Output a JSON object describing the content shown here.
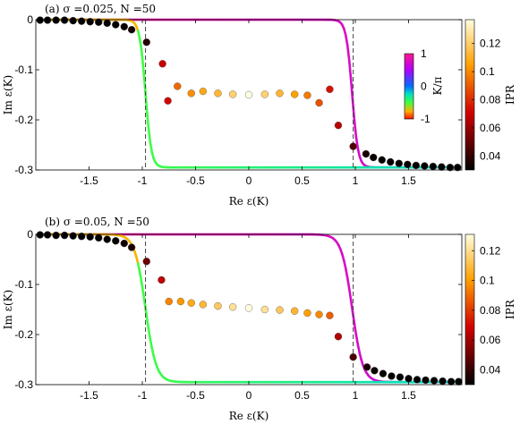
{
  "chart_data": [
    {
      "type": "scatter",
      "panel_label": "(a) σ =0.025, N =50",
      "xlabel": "Re ε(K)",
      "ylabel": "Im ε(K)",
      "xlim": [
        -2.0,
        2.0
      ],
      "ylim": [
        -0.3,
        0.0
      ],
      "xticks": [
        -1.5,
        -1,
        -0.5,
        0,
        0.5,
        1,
        1.5
      ],
      "xtick_labels": [
        "-1.5",
        "-1",
        "-0.5",
        "0",
        "0.5",
        "1",
        "1.5"
      ],
      "yticks": [
        0,
        -0.1,
        -0.2,
        -0.3
      ],
      "ytick_labels": [
        "0",
        "-0.1",
        "-0.2",
        "-0.3"
      ],
      "dashed_vlines": [
        -0.97,
        0.98
      ],
      "continuous_curve": {
        "colored_by": "K/π",
        "upper_branch": {
          "y": 0.0,
          "knee_x": 0.97,
          "width": 0.028
        },
        "lower_branch": {
          "y": -0.295,
          "knee_x": -0.97,
          "width": 0.028
        }
      },
      "points": [
        {
          "x": -0.96,
          "y": -0.045,
          "ipr": 0.037
        },
        {
          "x": -0.81,
          "y": -0.088,
          "ipr": 0.069
        },
        {
          "x": -0.76,
          "y": -0.162,
          "ipr": 0.072
        },
        {
          "x": -0.67,
          "y": -0.133,
          "ipr": 0.093
        },
        {
          "x": -0.54,
          "y": -0.147,
          "ipr": 0.101
        },
        {
          "x": -0.43,
          "y": -0.143,
          "ipr": 0.108
        },
        {
          "x": -0.29,
          "y": -0.147,
          "ipr": 0.112
        },
        {
          "x": -0.15,
          "y": -0.149,
          "ipr": 0.121
        },
        {
          "x": 0.0,
          "y": -0.15,
          "ipr": 0.137
        },
        {
          "x": 0.15,
          "y": -0.149,
          "ipr": 0.121
        },
        {
          "x": 0.29,
          "y": -0.147,
          "ipr": 0.112
        },
        {
          "x": 0.43,
          "y": -0.149,
          "ipr": 0.105
        },
        {
          "x": 0.55,
          "y": -0.151,
          "ipr": 0.097
        },
        {
          "x": 0.66,
          "y": -0.166,
          "ipr": 0.088
        },
        {
          "x": 0.76,
          "y": -0.139,
          "ipr": 0.074
        },
        {
          "x": 0.84,
          "y": -0.211,
          "ipr": 0.066
        },
        {
          "x": 0.98,
          "y": -0.253,
          "ipr": 0.046
        },
        {
          "x": 1.1,
          "y": -0.268,
          "ipr": 0.035
        },
        {
          "x": 1.17,
          "y": -0.275,
          "ipr": 0.032
        },
        {
          "x": 1.25,
          "y": -0.28,
          "ipr": 0.031
        },
        {
          "x": 1.33,
          "y": -0.284,
          "ipr": 0.03
        },
        {
          "x": 1.41,
          "y": -0.287,
          "ipr": 0.03
        },
        {
          "x": 1.49,
          "y": -0.289,
          "ipr": 0.03
        },
        {
          "x": 1.57,
          "y": -0.291,
          "ipr": 0.03
        },
        {
          "x": 1.65,
          "y": -0.292,
          "ipr": 0.03
        },
        {
          "x": 1.73,
          "y": -0.293,
          "ipr": 0.03
        },
        {
          "x": 1.81,
          "y": -0.294,
          "ipr": 0.03
        },
        {
          "x": 1.89,
          "y": -0.295,
          "ipr": 0.03
        },
        {
          "x": 1.96,
          "y": -0.295,
          "ipr": 0.03
        },
        {
          "x": -1.96,
          "y": -0.001,
          "ipr": 0.03
        },
        {
          "x": -1.89,
          "y": -0.001,
          "ipr": 0.03
        },
        {
          "x": -1.81,
          "y": -0.001,
          "ipr": 0.03
        },
        {
          "x": -1.73,
          "y": -0.001,
          "ipr": 0.03
        },
        {
          "x": -1.65,
          "y": -0.002,
          "ipr": 0.03
        },
        {
          "x": -1.57,
          "y": -0.003,
          "ipr": 0.03
        },
        {
          "x": -1.49,
          "y": -0.004,
          "ipr": 0.03
        },
        {
          "x": -1.41,
          "y": -0.005,
          "ipr": 0.03
        },
        {
          "x": -1.33,
          "y": -0.007,
          "ipr": 0.03
        },
        {
          "x": -1.25,
          "y": -0.01,
          "ipr": 0.031
        },
        {
          "x": -1.17,
          "y": -0.014,
          "ipr": 0.032
        },
        {
          "x": -1.1,
          "y": -0.02,
          "ipr": 0.034
        }
      ],
      "colorbar_k": {
        "label": "K/π",
        "ticks": [
          1,
          0,
          -1
        ],
        "tick_labels": [
          "1",
          "0",
          "-1"
        ]
      },
      "colorbar_ipr": {
        "label": "IPR",
        "range": [
          0.03,
          0.137
        ],
        "ticks": [
          0.04,
          0.06,
          0.08,
          0.1,
          0.12
        ],
        "tick_labels": [
          "0.04",
          "0.06",
          "0.08",
          "0.1",
          "0.12"
        ]
      }
    },
    {
      "type": "scatter",
      "panel_label": "(b) σ =0.05, N =50",
      "xlabel": "Re ε(K)",
      "ylabel": "Im ε(K)",
      "xlim": [
        -2.0,
        2.0
      ],
      "ylim": [
        -0.3,
        0.0
      ],
      "xticks": [
        -1.5,
        -1,
        -0.5,
        0,
        0.5,
        1,
        1.5
      ],
      "xtick_labels": [
        "-1.5",
        "-1",
        "-0.5",
        "0",
        "0.5",
        "1",
        "1.5"
      ],
      "yticks": [
        0,
        -0.1,
        -0.2,
        -0.3
      ],
      "ytick_labels": [
        "0",
        "-0.1",
        "-0.2",
        "-0.3"
      ],
      "dashed_vlines": [
        -0.97,
        0.98
      ],
      "continuous_curve": {
        "colored_by": "K/π",
        "upper_branch": {
          "y": 0.0,
          "knee_x": 0.97,
          "width": 0.05
        },
        "lower_branch": {
          "y": -0.295,
          "knee_x": -0.97,
          "width": 0.05
        }
      },
      "points": [
        {
          "x": -0.96,
          "y": -0.054,
          "ipr": 0.05
        },
        {
          "x": -0.82,
          "y": -0.091,
          "ipr": 0.065
        },
        {
          "x": -0.75,
          "y": -0.134,
          "ipr": 0.095
        },
        {
          "x": -0.64,
          "y": -0.134,
          "ipr": 0.099
        },
        {
          "x": -0.54,
          "y": -0.137,
          "ipr": 0.104
        },
        {
          "x": -0.43,
          "y": -0.14,
          "ipr": 0.108
        },
        {
          "x": -0.29,
          "y": -0.143,
          "ipr": 0.113
        },
        {
          "x": -0.15,
          "y": -0.145,
          "ipr": 0.121
        },
        {
          "x": 0.0,
          "y": -0.147,
          "ipr": 0.131
        },
        {
          "x": 0.15,
          "y": -0.15,
          "ipr": 0.121
        },
        {
          "x": 0.29,
          "y": -0.151,
          "ipr": 0.113
        },
        {
          "x": 0.43,
          "y": -0.153,
          "ipr": 0.107
        },
        {
          "x": 0.55,
          "y": -0.157,
          "ipr": 0.101
        },
        {
          "x": 0.66,
          "y": -0.16,
          "ipr": 0.096
        },
        {
          "x": 0.76,
          "y": -0.162,
          "ipr": 0.087
        },
        {
          "x": 0.84,
          "y": -0.204,
          "ipr": 0.063
        },
        {
          "x": 0.98,
          "y": -0.245,
          "ipr": 0.044
        },
        {
          "x": 1.11,
          "y": -0.265,
          "ipr": 0.035
        },
        {
          "x": 1.18,
          "y": -0.272,
          "ipr": 0.032
        },
        {
          "x": 1.26,
          "y": -0.278,
          "ipr": 0.031
        },
        {
          "x": 1.34,
          "y": -0.283,
          "ipr": 0.03
        },
        {
          "x": 1.42,
          "y": -0.285,
          "ipr": 0.03
        },
        {
          "x": 1.5,
          "y": -0.288,
          "ipr": 0.03
        },
        {
          "x": 1.58,
          "y": -0.29,
          "ipr": 0.03
        },
        {
          "x": 1.66,
          "y": -0.291,
          "ipr": 0.03
        },
        {
          "x": 1.74,
          "y": -0.292,
          "ipr": 0.03
        },
        {
          "x": 1.82,
          "y": -0.293,
          "ipr": 0.03
        },
        {
          "x": 1.9,
          "y": -0.294,
          "ipr": 0.03
        },
        {
          "x": 1.97,
          "y": -0.294,
          "ipr": 0.03
        },
        {
          "x": -1.96,
          "y": -0.001,
          "ipr": 0.03
        },
        {
          "x": -1.89,
          "y": -0.001,
          "ipr": 0.03
        },
        {
          "x": -1.81,
          "y": -0.002,
          "ipr": 0.03
        },
        {
          "x": -1.73,
          "y": -0.002,
          "ipr": 0.03
        },
        {
          "x": -1.65,
          "y": -0.003,
          "ipr": 0.03
        },
        {
          "x": -1.57,
          "y": -0.004,
          "ipr": 0.03
        },
        {
          "x": -1.49,
          "y": -0.005,
          "ipr": 0.03
        },
        {
          "x": -1.41,
          "y": -0.007,
          "ipr": 0.03
        },
        {
          "x": -1.33,
          "y": -0.01,
          "ipr": 0.031
        },
        {
          "x": -1.25,
          "y": -0.013,
          "ipr": 0.031
        },
        {
          "x": -1.17,
          "y": -0.018,
          "ipr": 0.033
        },
        {
          "x": -1.1,
          "y": -0.026,
          "ipr": 0.035
        }
      ],
      "colorbar_ipr": {
        "label": "IPR",
        "range": [
          0.03,
          0.131
        ],
        "ticks": [
          0.04,
          0.06,
          0.08,
          0.1,
          0.12
        ],
        "tick_labels": [
          "0.04",
          "0.06",
          "0.08",
          "0.1",
          "0.12"
        ]
      }
    }
  ]
}
